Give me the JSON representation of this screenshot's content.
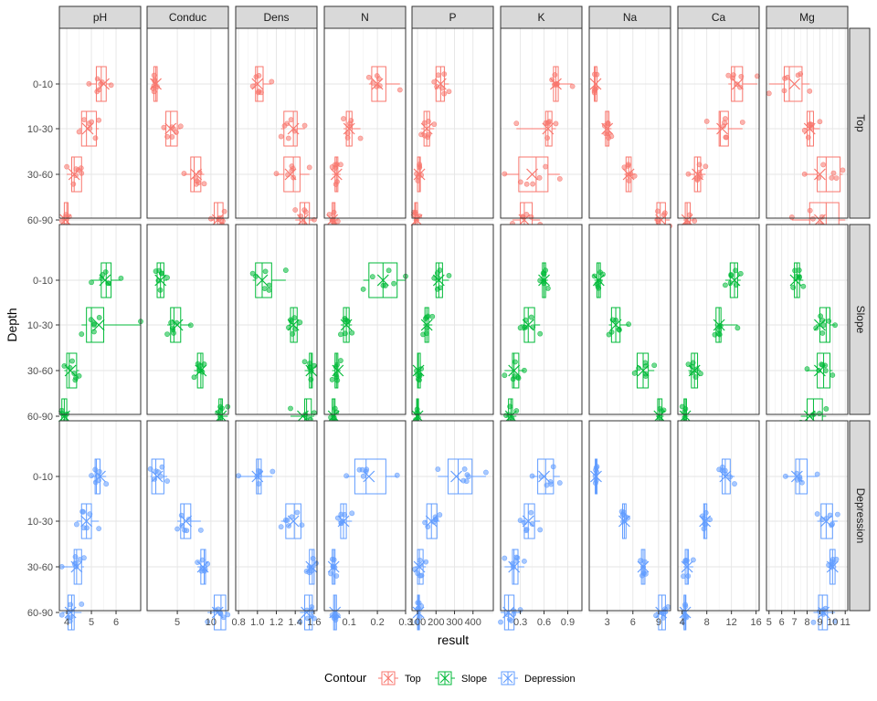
{
  "chart_data": {
    "type": "box",
    "x_label": "result",
    "y_label": "Depth",
    "legend": {
      "title": "Contour",
      "position": "bottom",
      "entries": [
        "Top",
        "Slope",
        "Depression"
      ]
    },
    "column_facets": [
      "pH",
      "Conduc",
      "Dens",
      "N",
      "P",
      "K",
      "Na",
      "Ca",
      "Mg"
    ],
    "row_facets": [
      "Top",
      "Slope",
      "Depression"
    ],
    "depth_categories": [
      "0-10",
      "10-30",
      "30-60",
      "60-90"
    ],
    "colors": {
      "Top": "#F8766D",
      "Slope": "#00BA38",
      "Depression": "#619CFF"
    },
    "scales": {
      "pH": {
        "domain": [
          3.7,
          7.0
        ],
        "ticks": [
          {
            "v": 4,
            "label": "4"
          },
          {
            "v": 5,
            "label": "5"
          },
          {
            "v": 6,
            "label": "6"
          }
        ]
      },
      "Conduc": {
        "domain": [
          0.5,
          12.6
        ],
        "ticks": [
          {
            "v": 5,
            "label": "5"
          },
          {
            "v": 10,
            "label": "10"
          }
        ]
      },
      "Dens": {
        "domain": [
          0.77,
          1.63
        ],
        "ticks": [
          {
            "v": 0.8,
            "label": "0.8"
          },
          {
            "v": 1.0,
            "label": "1.0"
          },
          {
            "v": 1.2,
            "label": "1.2"
          },
          {
            "v": 1.4,
            "label": "1.4"
          },
          {
            "v": 1.6,
            "label": "1.6"
          }
        ]
      },
      "N": {
        "domain": [
          0.012,
          0.3
        ],
        "ticks": [
          {
            "v": 0.1,
            "label": "0.1"
          },
          {
            "v": 0.2,
            "label": "0.2"
          },
          {
            "v": 0.3,
            "label": "0.3"
          }
        ]
      },
      "P": {
        "domain": [
          70,
          510
        ],
        "ticks": [
          {
            "v": 100,
            "label": "100"
          },
          {
            "v": 200,
            "label": "200"
          },
          {
            "v": 300,
            "label": "300"
          },
          {
            "v": 400,
            "label": "400"
          }
        ]
      },
      "K": {
        "domain": [
          0.05,
          1.08
        ],
        "ticks": [
          {
            "v": 0.3,
            "label": "0.3"
          },
          {
            "v": 0.6,
            "label": "0.6"
          },
          {
            "v": 0.9,
            "label": "0.9"
          }
        ]
      },
      "Na": {
        "domain": [
          0.9,
          10.4
        ],
        "ticks": [
          {
            "v": 3,
            "label": "3"
          },
          {
            "v": 6,
            "label": "6"
          },
          {
            "v": 9,
            "label": "9"
          }
        ]
      },
      "Ca": {
        "domain": [
          3.3,
          16.5
        ],
        "ticks": [
          {
            "v": 4,
            "label": "4"
          },
          {
            "v": 8,
            "label": "8"
          },
          {
            "v": 12,
            "label": "12"
          },
          {
            "v": 16,
            "label": "16"
          }
        ]
      },
      "Mg": {
        "domain": [
          4.8,
          11.2
        ],
        "ticks": [
          {
            "v": 5,
            "label": "5"
          },
          {
            "v": 6,
            "label": "6"
          },
          {
            "v": 7,
            "label": "7"
          },
          {
            "v": 8,
            "label": "8"
          },
          {
            "v": 9,
            "label": "9"
          },
          {
            "v": 10,
            "label": "10"
          },
          {
            "v": 11,
            "label": "11"
          }
        ]
      }
    },
    "boxes": {
      "pH": {
        "Top": [
          [
            5.2,
            5.4,
            5.6,
            4.9,
            5.8,
            5.5
          ],
          [
            4.6,
            4.8,
            5.2,
            4.5,
            5.3,
            4.85
          ],
          [
            4.2,
            4.3,
            4.6,
            4.0,
            4.6,
            4.3
          ],
          [
            3.9,
            4.0,
            4.05,
            3.8,
            4.1,
            3.95
          ]
        ],
        "Slope": [
          [
            5.4,
            5.6,
            5.8,
            5.0,
            6.2,
            5.55
          ],
          [
            4.8,
            5.0,
            5.5,
            4.6,
            7.0,
            5.3
          ],
          [
            4.0,
            4.1,
            4.4,
            3.9,
            4.5,
            4.15
          ],
          [
            3.8,
            3.9,
            4.0,
            3.8,
            4.0,
            3.9
          ]
        ],
        "Depression": [
          [
            5.15,
            5.2,
            5.35,
            5.0,
            5.6,
            5.35
          ],
          [
            4.6,
            4.8,
            5.0,
            4.4,
            5.3,
            4.8
          ],
          [
            4.3,
            4.4,
            4.6,
            3.8,
            4.7,
            4.4
          ],
          [
            4.05,
            4.2,
            4.3,
            3.8,
            4.6,
            4.15
          ]
        ]
      },
      "Conduc": {
        "Top": [
          [
            1.5,
            1.8,
            2.0,
            1.4,
            2.0,
            1.8
          ],
          [
            3.3,
            4.0,
            5.0,
            3.0,
            5.5,
            4.0
          ],
          [
            7.0,
            7.5,
            8.5,
            6.0,
            9.0,
            7.8
          ],
          [
            10.5,
            11.0,
            11.8,
            10.0,
            12.0,
            11.0
          ]
        ],
        "Slope": [
          [
            2.0,
            2.5,
            3.0,
            1.8,
            3.5,
            2.5
          ],
          [
            4.0,
            4.5,
            5.5,
            3.5,
            7.0,
            5.0
          ],
          [
            8.0,
            8.5,
            8.8,
            7.5,
            9.0,
            8.5
          ],
          [
            11.2,
            11.5,
            11.7,
            11.0,
            12.5,
            11.5
          ]
        ],
        "Depression": [
          [
            1.2,
            1.8,
            3.0,
            1.0,
            3.5,
            2.0
          ],
          [
            5.5,
            6.0,
            7.0,
            5.0,
            8.5,
            6.3
          ],
          [
            8.5,
            9.0,
            9.2,
            8.0,
            9.5,
            8.8
          ],
          [
            10.5,
            11.5,
            12.2,
            9.5,
            12.5,
            11.0
          ]
        ]
      },
      "Dens": {
        "Top": [
          [
            0.98,
            1.0,
            1.06,
            0.95,
            1.15,
            1.0
          ],
          [
            1.28,
            1.38,
            1.42,
            1.25,
            1.5,
            1.38
          ],
          [
            1.28,
            1.38,
            1.45,
            1.2,
            1.55,
            1.35
          ],
          [
            1.45,
            1.5,
            1.55,
            1.4,
            1.6,
            1.48
          ]
        ],
        "Slope": [
          [
            0.98,
            1.05,
            1.15,
            0.95,
            1.3,
            1.05
          ],
          [
            1.35,
            1.38,
            1.42,
            1.33,
            1.45,
            1.38
          ],
          [
            1.55,
            1.57,
            1.58,
            1.5,
            1.6,
            1.57
          ],
          [
            1.5,
            1.52,
            1.57,
            1.35,
            1.6,
            1.48
          ]
        ],
        "Depression": [
          [
            0.99,
            1.01,
            1.04,
            0.8,
            1.16,
            1.0
          ],
          [
            1.3,
            1.39,
            1.46,
            1.25,
            1.47,
            1.38
          ],
          [
            1.55,
            1.58,
            1.6,
            1.52,
            1.62,
            1.57
          ],
          [
            1.5,
            1.55,
            1.58,
            1.45,
            1.6,
            1.52
          ]
        ]
      },
      "N": {
        "Top": [
          [
            0.18,
            0.2,
            0.23,
            0.17,
            0.28,
            0.2
          ],
          [
            0.09,
            0.1,
            0.11,
            0.08,
            0.14,
            0.1
          ],
          [
            0.05,
            0.055,
            0.06,
            0.04,
            0.07,
            0.055
          ],
          [
            0.04,
            0.045,
            0.05,
            0.03,
            0.06,
            0.04
          ]
        ],
        "Slope": [
          [
            0.17,
            0.22,
            0.27,
            0.15,
            0.3,
            0.22
          ],
          [
            0.08,
            0.09,
            0.1,
            0.07,
            0.11,
            0.09
          ],
          [
            0.05,
            0.055,
            0.06,
            0.04,
            0.07,
            0.06
          ],
          [
            0.04,
            0.045,
            0.05,
            0.035,
            0.055,
            0.045
          ]
        ],
        "Depression": [
          [
            0.12,
            0.16,
            0.23,
            0.09,
            0.27,
            0.17
          ],
          [
            0.07,
            0.08,
            0.09,
            0.06,
            0.11,
            0.08
          ],
          [
            0.04,
            0.045,
            0.05,
            0.035,
            0.055,
            0.045
          ],
          [
            0.045,
            0.05,
            0.055,
            0.04,
            0.06,
            0.05
          ]
        ]
      },
      "P": {
        "Top": [
          [
            200,
            225,
            245,
            190,
            270,
            225
          ],
          [
            135,
            150,
            165,
            120,
            190,
            150
          ],
          [
            100,
            110,
            115,
            95,
            120,
            110
          ],
          [
            85,
            90,
            100,
            80,
            110,
            95
          ]
        ],
        "Slope": [
          [
            200,
            215,
            235,
            190,
            270,
            215
          ],
          [
            140,
            150,
            160,
            130,
            180,
            150
          ],
          [
            100,
            105,
            115,
            95,
            120,
            105
          ],
          [
            95,
            100,
            105,
            90,
            110,
            100
          ]
        ],
        "Depression": [
          [
            265,
            320,
            395,
            210,
            470,
            310
          ],
          [
            150,
            175,
            205,
            140,
            220,
            175
          ],
          [
            100,
            110,
            130,
            85,
            145,
            110
          ],
          [
            100,
            105,
            110,
            95,
            120,
            105
          ]
        ]
      },
      "K": {
        "Top": [
          [
            0.72,
            0.75,
            0.78,
            0.7,
            0.96,
            0.75
          ],
          [
            0.62,
            0.65,
            0.7,
            0.25,
            0.75,
            0.65
          ],
          [
            0.28,
            0.5,
            0.65,
            0.1,
            0.8,
            0.45
          ],
          [
            0.3,
            0.35,
            0.45,
            0.2,
            0.55,
            0.35
          ]
        ],
        "Slope": [
          [
            0.58,
            0.6,
            0.62,
            0.55,
            0.65,
            0.6
          ],
          [
            0.35,
            0.4,
            0.48,
            0.3,
            0.55,
            0.4
          ],
          [
            0.2,
            0.22,
            0.28,
            0.1,
            0.35,
            0.22
          ],
          [
            0.15,
            0.18,
            0.2,
            0.12,
            0.25,
            0.18
          ]
        ],
        "Depression": [
          [
            0.52,
            0.62,
            0.72,
            0.45,
            0.8,
            0.6
          ],
          [
            0.35,
            0.4,
            0.48,
            0.3,
            0.55,
            0.4
          ],
          [
            0.2,
            0.22,
            0.27,
            0.1,
            0.35,
            0.22
          ],
          [
            0.1,
            0.15,
            0.22,
            0.05,
            0.3,
            0.15
          ]
        ]
      },
      "Na": {
        "Top": [
          [
            1.5,
            1.6,
            1.8,
            1.5,
            1.8,
            1.65
          ],
          [
            2.8,
            3.0,
            3.2,
            2.7,
            3.5,
            3.0
          ],
          [
            5.2,
            5.5,
            5.8,
            5.0,
            6.2,
            5.5
          ],
          [
            8.8,
            9.2,
            9.8,
            8.5,
            10.3,
            9.3
          ]
        ],
        "Slope": [
          [
            1.8,
            2.0,
            2.2,
            1.5,
            2.5,
            2.0
          ],
          [
            3.5,
            4.0,
            4.5,
            3.2,
            5.5,
            4.0
          ],
          [
            6.5,
            7.2,
            7.8,
            6.2,
            8.5,
            7.2
          ],
          [
            8.9,
            9.1,
            9.4,
            8.7,
            9.6,
            9.1
          ]
        ],
        "Depression": [
          [
            1.6,
            1.7,
            1.8,
            1.6,
            1.8,
            1.7
          ],
          [
            4.8,
            5.0,
            5.2,
            4.7,
            5.4,
            5.0
          ],
          [
            7.0,
            7.2,
            7.4,
            6.9,
            7.5,
            7.2
          ],
          [
            9.0,
            9.4,
            9.8,
            8.7,
            10.1,
            9.3
          ]
        ]
      },
      "Ca": {
        "Top": [
          [
            12.0,
            12.5,
            13.8,
            11.5,
            16.2,
            13.0
          ],
          [
            10.0,
            10.2,
            11.5,
            8.0,
            13.8,
            10.5
          ],
          [
            6.0,
            6.5,
            7.0,
            5.0,
            7.8,
            6.5
          ],
          [
            4.5,
            4.8,
            5.3,
            4.2,
            6.0,
            4.8
          ]
        ],
        "Slope": [
          [
            11.8,
            12.5,
            13.0,
            11.0,
            13.5,
            12.5
          ],
          [
            9.5,
            10.0,
            10.3,
            9.3,
            13.0,
            10.0
          ],
          [
            5.5,
            6.0,
            6.5,
            5.0,
            7.0,
            6.0
          ],
          [
            4.3,
            4.5,
            4.7,
            4.0,
            5.0,
            4.5
          ]
        ],
        "Depression": [
          [
            10.5,
            11.0,
            11.8,
            10.0,
            12.5,
            11.0
          ],
          [
            7.5,
            7.7,
            8.0,
            7.3,
            8.5,
            7.7
          ],
          [
            4.5,
            4.8,
            5.0,
            4.2,
            5.8,
            4.8
          ],
          [
            4.3,
            4.5,
            4.6,
            4.2,
            4.7,
            4.5
          ]
        ]
      },
      "Mg": {
        "Top": [
          [
            6.2,
            6.6,
            7.6,
            5.0,
            8.2,
            7.0
          ],
          [
            8.0,
            8.2,
            8.5,
            7.8,
            9.0,
            8.2
          ],
          [
            8.8,
            9.5,
            10.6,
            7.8,
            10.8,
            9.0
          ],
          [
            8.2,
            9.5,
            10.5,
            6.8,
            11.0,
            9.0
          ]
        ],
        "Slope": [
          [
            7.0,
            7.2,
            7.4,
            6.9,
            7.7,
            7.1
          ],
          [
            9.0,
            9.5,
            9.8,
            8.7,
            10.2,
            9.0
          ],
          [
            8.8,
            9.3,
            9.8,
            8.0,
            10.0,
            9.0
          ],
          [
            8.0,
            8.5,
            9.2,
            7.5,
            9.5,
            8.2
          ]
        ],
        "Depression": [
          [
            7.1,
            7.4,
            8.0,
            6.3,
            8.8,
            7.2
          ],
          [
            9.1,
            9.5,
            10.0,
            8.8,
            10.4,
            9.5
          ],
          [
            9.8,
            10.0,
            10.2,
            9.7,
            10.3,
            10.0
          ],
          [
            8.9,
            9.2,
            9.6,
            8.5,
            10.2,
            9.3
          ]
        ]
      }
    }
  }
}
